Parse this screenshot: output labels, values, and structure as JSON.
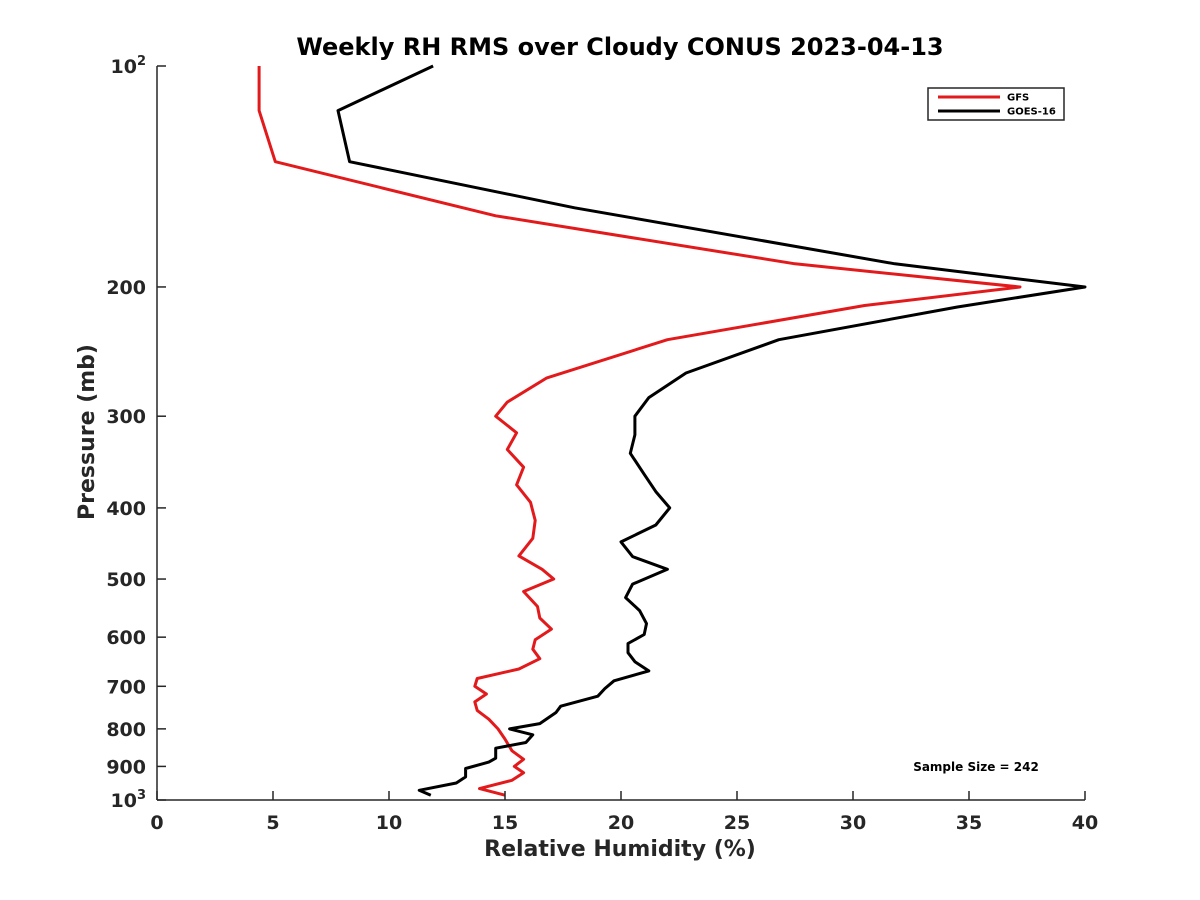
{
  "chart_data": {
    "type": "line",
    "title": "Weekly RH RMS over Cloudy CONUS 2023-04-13",
    "xlabel": "Relative Humidity (%)",
    "ylabel": "Pressure (mb)",
    "xlim": [
      0,
      40
    ],
    "ylim": [
      100,
      1000
    ],
    "y_scale": "log",
    "y_reversed": true,
    "grid": false,
    "legend_position": "top-right",
    "x_ticks": [
      {
        "value": 0,
        "label": "0"
      },
      {
        "value": 5,
        "label": "5"
      },
      {
        "value": 10,
        "label": "10"
      },
      {
        "value": 15,
        "label": "15"
      },
      {
        "value": 20,
        "label": "20"
      },
      {
        "value": 25,
        "label": "25"
      },
      {
        "value": 30,
        "label": "30"
      },
      {
        "value": 35,
        "label": "35"
      },
      {
        "value": 40,
        "label": "40"
      }
    ],
    "y_ticks": [
      {
        "value": 100,
        "base": "10",
        "exp": "2"
      },
      {
        "value": 200,
        "label": "200"
      },
      {
        "value": 300,
        "label": "300"
      },
      {
        "value": 400,
        "label": "400"
      },
      {
        "value": 500,
        "label": "500"
      },
      {
        "value": 600,
        "label": "600"
      },
      {
        "value": 700,
        "label": "700"
      },
      {
        "value": 800,
        "label": "800"
      },
      {
        "value": 900,
        "label": "900"
      },
      {
        "value": 1000,
        "base": "10",
        "exp": "3"
      }
    ],
    "series": [
      {
        "name": "GFS",
        "color": "#e31a1c",
        "points": [
          [
            4.4,
            100
          ],
          [
            4.4,
            115
          ],
          [
            5.1,
            135
          ],
          [
            14.6,
            160
          ],
          [
            27.5,
            186
          ],
          [
            37.2,
            200
          ],
          [
            30.5,
            212
          ],
          [
            22.0,
            236
          ],
          [
            16.8,
            266
          ],
          [
            15.1,
            287
          ],
          [
            14.6,
            300
          ],
          [
            15.5,
            316
          ],
          [
            15.1,
            333
          ],
          [
            15.8,
            352
          ],
          [
            15.5,
            372
          ],
          [
            16.1,
            393
          ],
          [
            16.3,
            416
          ],
          [
            16.2,
            440
          ],
          [
            15.6,
            465
          ],
          [
            16.6,
            485
          ],
          [
            17.1,
            500
          ],
          [
            15.8,
            520
          ],
          [
            16.4,
            545
          ],
          [
            16.5,
            565
          ],
          [
            17.0,
            585
          ],
          [
            16.3,
            605
          ],
          [
            16.2,
            623
          ],
          [
            16.5,
            642
          ],
          [
            15.6,
            663
          ],
          [
            13.8,
            683
          ],
          [
            13.7,
            700
          ],
          [
            14.2,
            717
          ],
          [
            13.7,
            735
          ],
          [
            13.8,
            755
          ],
          [
            14.3,
            776
          ],
          [
            14.7,
            800
          ],
          [
            15.0,
            826
          ],
          [
            15.3,
            857
          ],
          [
            15.8,
            880
          ],
          [
            15.4,
            900
          ],
          [
            15.8,
            918
          ],
          [
            15.3,
            940
          ],
          [
            13.9,
            965
          ],
          [
            15.0,
            985
          ]
        ]
      },
      {
        "name": "GOES-16",
        "color": "#000000",
        "points": [
          [
            11.9,
            100
          ],
          [
            7.8,
            115
          ],
          [
            8.3,
            135
          ],
          [
            18.0,
            156
          ],
          [
            31.8,
            186
          ],
          [
            40.0,
            200
          ],
          [
            34.5,
            213
          ],
          [
            26.8,
            236
          ],
          [
            22.8,
            262
          ],
          [
            21.2,
            283
          ],
          [
            20.6,
            300
          ],
          [
            20.6,
            318
          ],
          [
            20.4,
            337
          ],
          [
            21.0,
            360
          ],
          [
            21.5,
            380
          ],
          [
            22.1,
            400
          ],
          [
            21.5,
            422
          ],
          [
            20.0,
            445
          ],
          [
            20.5,
            466
          ],
          [
            22.0,
            485
          ],
          [
            20.5,
            508
          ],
          [
            20.2,
            530
          ],
          [
            20.8,
            552
          ],
          [
            21.1,
            575
          ],
          [
            21.0,
            595
          ],
          [
            20.3,
            612
          ],
          [
            20.3,
            630
          ],
          [
            20.6,
            648
          ],
          [
            21.2,
            667
          ],
          [
            19.7,
            688
          ],
          [
            19.3,
            705
          ],
          [
            19.0,
            722
          ],
          [
            17.4,
            745
          ],
          [
            17.2,
            760
          ],
          [
            16.5,
            787
          ],
          [
            15.2,
            800
          ],
          [
            16.2,
            815
          ],
          [
            15.9,
            835
          ],
          [
            14.6,
            850
          ],
          [
            14.6,
            877
          ],
          [
            14.3,
            888
          ],
          [
            13.3,
            906
          ],
          [
            13.3,
            930
          ],
          [
            12.9,
            948
          ],
          [
            11.3,
            970
          ],
          [
            11.8,
            985
          ]
        ]
      }
    ],
    "annotation": "Sample Size = 242"
  }
}
